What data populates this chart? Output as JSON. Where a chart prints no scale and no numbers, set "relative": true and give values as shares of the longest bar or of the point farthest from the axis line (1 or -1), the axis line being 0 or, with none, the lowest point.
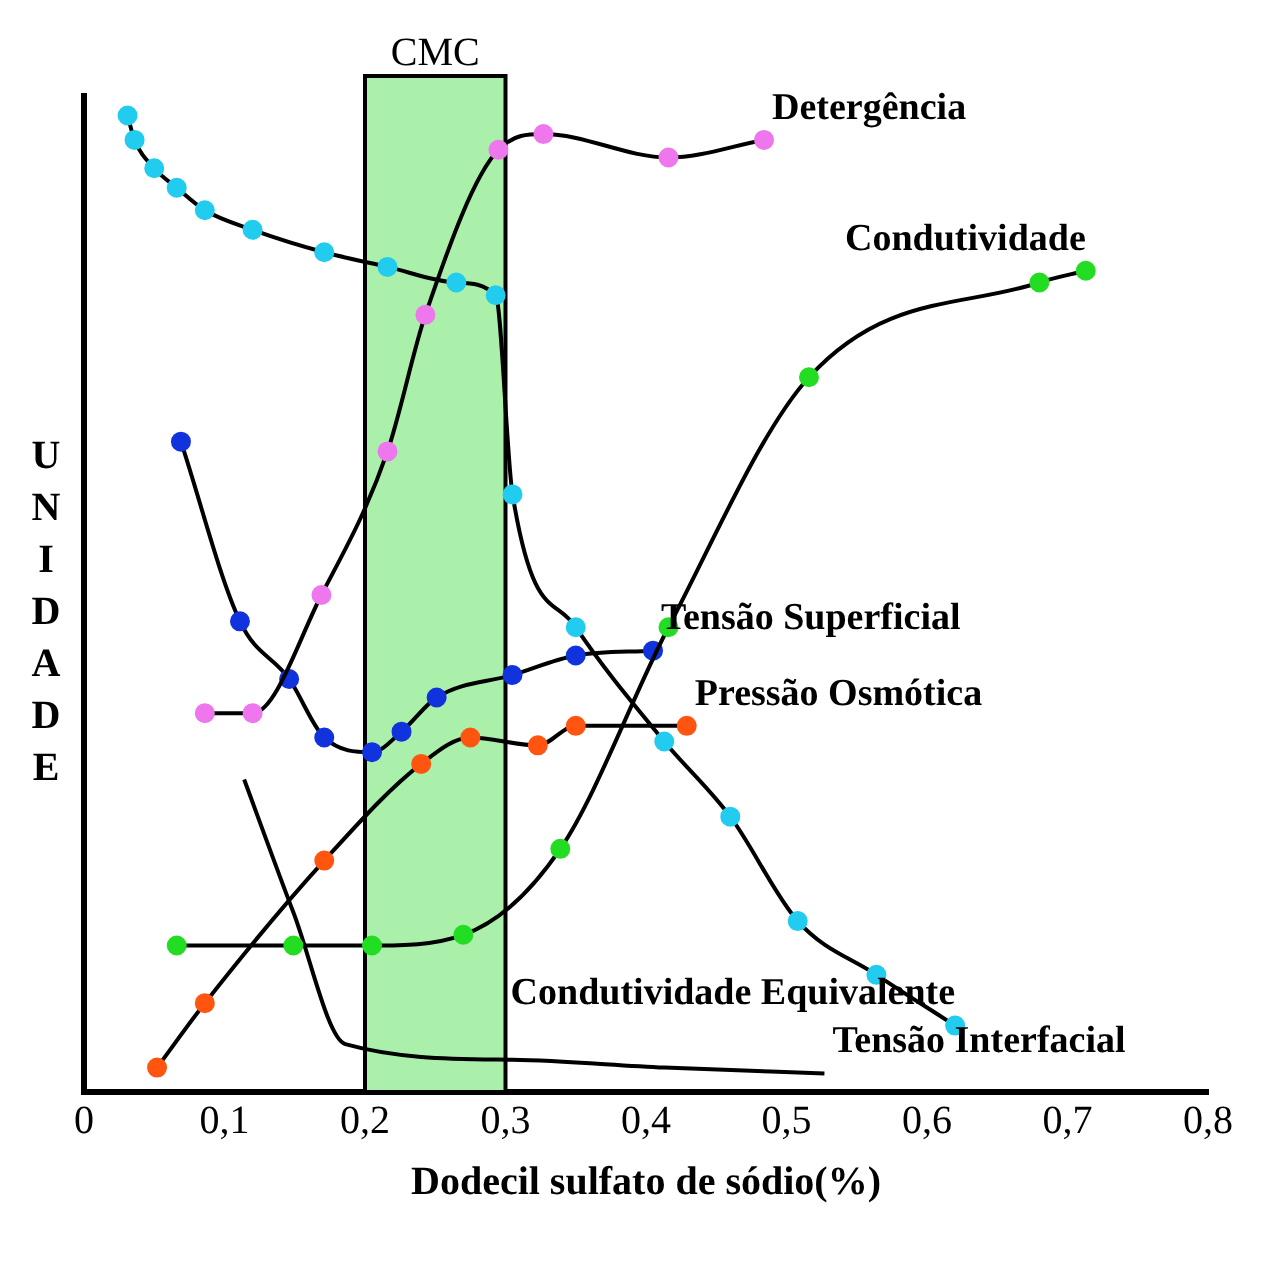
{
  "chart_data": {
    "type": "line",
    "relative": true,
    "xlabel": "Dodecil sulfato de sódio(%)",
    "ylabel": "UNIDADE",
    "xlim": [
      0,
      0.8
    ],
    "xticks": [
      {
        "value": 0,
        "label": "0"
      },
      {
        "value": 0.1,
        "label": "0,1"
      },
      {
        "value": 0.2,
        "label": "0,2"
      },
      {
        "value": 0.3,
        "label": "0,3"
      },
      {
        "value": 0.4,
        "label": "0,4"
      },
      {
        "value": 0.5,
        "label": "0,5"
      },
      {
        "value": 0.6,
        "label": "0,6"
      },
      {
        "value": 0.7,
        "label": "0,7"
      },
      {
        "value": 0.8,
        "label": "0,8"
      }
    ],
    "grid": false,
    "legend": false,
    "marker": "circle",
    "line_style": "solid",
    "bands": [
      {
        "axis": "x",
        "from": 0.2,
        "to": 0.3,
        "label": "CMC",
        "color": "#aaf0aa"
      }
    ],
    "series": [
      {
        "name": "Detergência",
        "color": "#ee77ee",
        "x": [
          0.086,
          0.12,
          0.169,
          0.216,
          0.243,
          0.295,
          0.327,
          0.416,
          0.484
        ],
        "values": [
          0.388,
          0.388,
          0.509,
          0.656,
          0.796,
          0.965,
          0.981,
          0.957,
          0.975
        ]
      },
      {
        "name": "Condutividade",
        "color": "#22dd22",
        "x": [
          0.066,
          0.149,
          0.205,
          0.27,
          0.339,
          0.416,
          0.516,
          0.68,
          0.713
        ],
        "values": [
          0.15,
          0.15,
          0.15,
          0.161,
          0.249,
          0.476,
          0.732,
          0.829,
          0.841
        ]
      },
      {
        "name": "Tensão Superficial",
        "color": "#1133dd",
        "x": [
          0.069,
          0.111,
          0.146,
          0.171,
          0.205,
          0.226,
          0.251,
          0.305,
          0.35,
          0.405
        ],
        "values": [
          0.666,
          0.482,
          0.423,
          0.363,
          0.348,
          0.369,
          0.404,
          0.427,
          0.447,
          0.452
        ]
      },
      {
        "name": "Pressão Osmótica",
        "color": "#ff5511",
        "x": [
          0.052,
          0.086,
          0.171,
          0.24,
          0.275,
          0.323,
          0.35,
          0.429
        ],
        "values": [
          0.025,
          0.091,
          0.237,
          0.336,
          0.363,
          0.355,
          0.375,
          0.375
        ]
      },
      {
        "name": "Condutividade Equivalente",
        "color": "#22ccee",
        "x": [
          0.031,
          0.036,
          0.05,
          0.066,
          0.086,
          0.12,
          0.171,
          0.216,
          0.265,
          0.293,
          0.305,
          0.35,
          0.413,
          0.46,
          0.508,
          0.564,
          0.62
        ],
        "values": [
          1.0,
          0.975,
          0.946,
          0.926,
          0.903,
          0.883,
          0.86,
          0.845,
          0.829,
          0.816,
          0.612,
          0.476,
          0.359,
          0.282,
          0.175,
          0.12,
          0.068
        ]
      },
      {
        "name": "Tensão Interfacial",
        "color": "#000000",
        "marker": "none",
        "x": [
          0.114,
          0.149,
          0.186,
          0.305,
          0.413,
          0.527
        ],
        "values": [
          0.32,
          0.184,
          0.049,
          0.033,
          0.025,
          0.019
        ]
      }
    ]
  }
}
